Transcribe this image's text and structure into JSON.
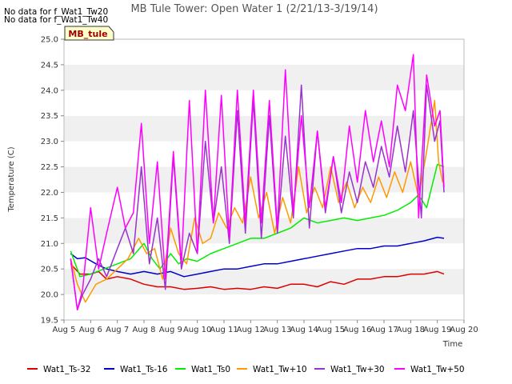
{
  "chart_data": {
    "type": "line",
    "title": "MB Tule Tower: Open Water 1 (2/21/13-3/19/14)",
    "xlabel": "Time",
    "ylabel": "Temperature (C)",
    "xlim": [
      5,
      20
    ],
    "ylim": [
      19.5,
      25.0
    ],
    "x_ticks": [
      "Aug 5",
      "Aug 6",
      "Aug 7",
      "Aug 8",
      "Aug 9",
      "Aug 10",
      "Aug 11",
      "Aug 12",
      "Aug 13",
      "Aug 14",
      "Aug 15",
      "Aug 16",
      "Aug 17",
      "Aug 18",
      "Aug 19",
      "Aug 20"
    ],
    "y_ticks": [
      "19.5",
      "20.0",
      "20.5",
      "21.0",
      "21.5",
      "22.0",
      "22.5",
      "23.0",
      "23.5",
      "24.0",
      "24.5",
      "25.0"
    ],
    "grid": "horizontal bands",
    "legend_position": "bottom",
    "no_data_notes": [
      "No data for f_Wat1_Tw20",
      "No data for f_Wat1_Tw40"
    ],
    "badge": "MB_tule",
    "series": [
      {
        "name": "Wat1_Ts-32",
        "color": "#dd0000",
        "x": [
          5.25,
          5.6,
          6.0,
          6.3,
          6.6,
          7.0,
          7.5,
          8.0,
          8.5,
          9.0,
          9.5,
          10.0,
          10.5,
          11.0,
          11.5,
          12.0,
          12.5,
          13.0,
          13.5,
          14.0,
          14.5,
          15.0,
          15.5,
          16.0,
          16.5,
          17.0,
          17.5,
          18.0,
          18.5,
          19.0,
          19.25
        ],
        "values": [
          20.6,
          20.4,
          20.4,
          20.45,
          20.3,
          20.35,
          20.3,
          20.2,
          20.15,
          20.15,
          20.1,
          20.12,
          20.15,
          20.1,
          20.12,
          20.1,
          20.15,
          20.12,
          20.2,
          20.2,
          20.15,
          20.25,
          20.2,
          20.3,
          20.3,
          20.35,
          20.35,
          20.4,
          20.4,
          20.45,
          20.4
        ]
      },
      {
        "name": "Wat1_Ts-16",
        "color": "#0000cc",
        "x": [
          5.25,
          5.5,
          5.8,
          6.2,
          6.6,
          7.0,
          7.5,
          8.0,
          8.5,
          9.0,
          9.5,
          10.0,
          10.5,
          11.0,
          11.5,
          12.0,
          12.5,
          13.0,
          13.5,
          14.0,
          14.5,
          15.0,
          15.5,
          16.0,
          16.5,
          17.0,
          17.5,
          18.0,
          18.5,
          19.0,
          19.25
        ],
        "values": [
          20.8,
          20.7,
          20.72,
          20.6,
          20.5,
          20.45,
          20.4,
          20.45,
          20.4,
          20.45,
          20.35,
          20.4,
          20.45,
          20.5,
          20.5,
          20.55,
          20.6,
          20.6,
          20.65,
          20.7,
          20.75,
          20.8,
          20.85,
          20.9,
          20.9,
          20.95,
          20.95,
          21.0,
          21.05,
          21.12,
          21.1
        ]
      },
      {
        "name": "Wat1_Ts0",
        "color": "#00ee00",
        "x": [
          5.25,
          5.6,
          6.0,
          6.5,
          7.0,
          7.5,
          8.0,
          8.3,
          8.6,
          9.0,
          9.3,
          9.6,
          10.0,
          10.5,
          11.0,
          11.5,
          12.0,
          12.5,
          13.0,
          13.5,
          14.0,
          14.5,
          15.0,
          15.5,
          16.0,
          16.5,
          17.0,
          17.5,
          18.0,
          18.3,
          18.6,
          19.0,
          19.25
        ],
        "values": [
          20.85,
          20.35,
          20.4,
          20.5,
          20.6,
          20.7,
          21.0,
          20.7,
          20.5,
          20.8,
          20.6,
          20.7,
          20.65,
          20.8,
          20.9,
          21.0,
          21.1,
          21.1,
          21.2,
          21.3,
          21.5,
          21.4,
          21.45,
          21.5,
          21.45,
          21.5,
          21.55,
          21.65,
          21.8,
          21.95,
          21.7,
          22.55,
          22.5
        ]
      },
      {
        "name": "Wat1_Tw+10",
        "color": "#ff9900",
        "x": [
          5.25,
          5.5,
          5.8,
          6.2,
          6.6,
          7.0,
          7.4,
          7.8,
          8.1,
          8.4,
          8.7,
          9.0,
          9.3,
          9.6,
          9.9,
          10.2,
          10.5,
          10.8,
          11.1,
          11.4,
          11.7,
          12.0,
          12.3,
          12.6,
          12.9,
          13.2,
          13.5,
          13.8,
          14.1,
          14.4,
          14.7,
          15.0,
          15.3,
          15.6,
          15.9,
          16.2,
          16.5,
          16.8,
          17.1,
          17.4,
          17.7,
          18.0,
          18.3,
          18.6,
          18.9,
          19.05,
          19.2
        ],
        "values": [
          20.7,
          20.2,
          19.85,
          20.2,
          20.3,
          20.5,
          20.7,
          21.1,
          20.8,
          20.9,
          20.3,
          21.3,
          20.8,
          20.6,
          21.5,
          21.0,
          21.1,
          21.6,
          21.3,
          21.7,
          21.4,
          22.3,
          21.5,
          22.0,
          21.2,
          21.9,
          21.4,
          22.5,
          21.6,
          22.1,
          21.7,
          22.5,
          21.8,
          22.2,
          21.7,
          22.1,
          21.8,
          22.3,
          21.9,
          22.4,
          22.0,
          22.6,
          21.9,
          22.8,
          23.8,
          22.6,
          22.2
        ]
      },
      {
        "name": "Wat1_Tw+30",
        "color": "#9933cc",
        "x": [
          5.25,
          5.5,
          5.7,
          6.0,
          6.3,
          6.6,
          7.0,
          7.3,
          7.6,
          7.9,
          8.2,
          8.5,
          8.8,
          9.1,
          9.4,
          9.7,
          10.0,
          10.3,
          10.6,
          10.9,
          11.2,
          11.5,
          11.8,
          12.1,
          12.4,
          12.7,
          13.0,
          13.3,
          13.6,
          13.9,
          14.2,
          14.5,
          14.8,
          15.1,
          15.4,
          15.7,
          16.0,
          16.3,
          16.6,
          16.9,
          17.2,
          17.5,
          17.8,
          18.1,
          18.4,
          18.6,
          18.9,
          19.1,
          19.25
        ],
        "values": [
          20.7,
          19.7,
          20.0,
          20.3,
          20.7,
          20.35,
          20.9,
          21.3,
          20.8,
          22.5,
          20.6,
          21.5,
          20.1,
          22.7,
          20.5,
          21.2,
          20.8,
          23.0,
          21.4,
          22.5,
          21.0,
          23.6,
          21.2,
          23.8,
          21.1,
          23.5,
          21.2,
          23.1,
          21.5,
          24.1,
          21.3,
          23.2,
          21.6,
          22.7,
          21.6,
          22.4,
          21.8,
          22.6,
          22.1,
          22.9,
          22.3,
          23.3,
          22.4,
          23.6,
          21.5,
          24.1,
          23.0,
          23.4,
          22.0
        ]
      },
      {
        "name": "Wat1_Tw+50",
        "color": "#ff00ff",
        "x": [
          5.25,
          5.5,
          5.7,
          6.0,
          6.3,
          6.6,
          7.0,
          7.3,
          7.6,
          7.9,
          8.2,
          8.5,
          8.8,
          9.1,
          9.4,
          9.7,
          10.0,
          10.3,
          10.6,
          10.9,
          11.2,
          11.5,
          11.8,
          12.1,
          12.4,
          12.7,
          13.0,
          13.3,
          13.6,
          13.9,
          14.2,
          14.5,
          14.8,
          15.1,
          15.4,
          15.7,
          16.0,
          16.3,
          16.6,
          16.9,
          17.2,
          17.5,
          17.8,
          18.1,
          18.3,
          18.6,
          18.9,
          19.1,
          19.25
        ],
        "values": [
          20.7,
          19.7,
          20.1,
          21.7,
          20.5,
          21.2,
          22.1,
          21.3,
          21.6,
          23.35,
          21.0,
          22.6,
          20.3,
          22.8,
          20.6,
          23.8,
          20.8,
          24.0,
          21.4,
          23.9,
          21.1,
          24.0,
          21.4,
          24.0,
          21.4,
          23.8,
          21.3,
          24.4,
          21.6,
          23.5,
          21.7,
          23.2,
          21.7,
          22.7,
          21.8,
          23.3,
          22.2,
          23.6,
          22.6,
          23.4,
          22.5,
          24.1,
          23.6,
          24.7,
          21.5,
          24.3,
          23.3,
          23.6,
          22.1
        ]
      }
    ]
  }
}
